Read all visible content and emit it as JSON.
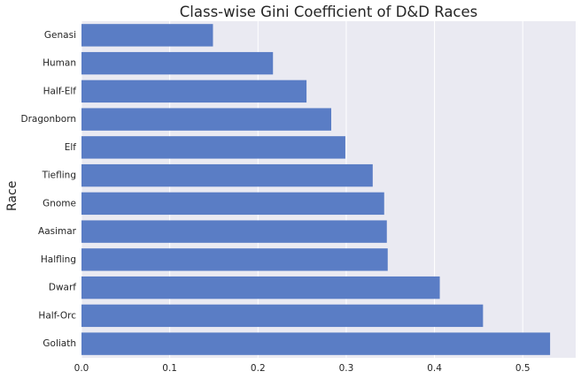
{
  "chart_data": {
    "type": "bar",
    "orientation": "horizontal",
    "title": "Class-wise Gini Coefficient of D&D Races",
    "xlabel": "",
    "ylabel": "Race",
    "categories": [
      "Genasi",
      "Human",
      "Half-Elf",
      "Dragonborn",
      "Elf",
      "Tiefling",
      "Gnome",
      "Aasimar",
      "Halfling",
      "Dwarf",
      "Half-Orc",
      "Goliath"
    ],
    "values": [
      0.149,
      0.217,
      0.255,
      0.283,
      0.299,
      0.33,
      0.343,
      0.346,
      0.347,
      0.406,
      0.455,
      0.531
    ],
    "xlim": [
      0,
      0.56
    ],
    "xticks": [
      "0.0",
      "0.1",
      "0.2",
      "0.3",
      "0.4",
      "0.5"
    ],
    "xtick_values": [
      0,
      0.1,
      0.2,
      0.3,
      0.4,
      0.5
    ],
    "grid": true,
    "bar_color": "#5a7dc5",
    "background_color": "#eaeaf2"
  }
}
